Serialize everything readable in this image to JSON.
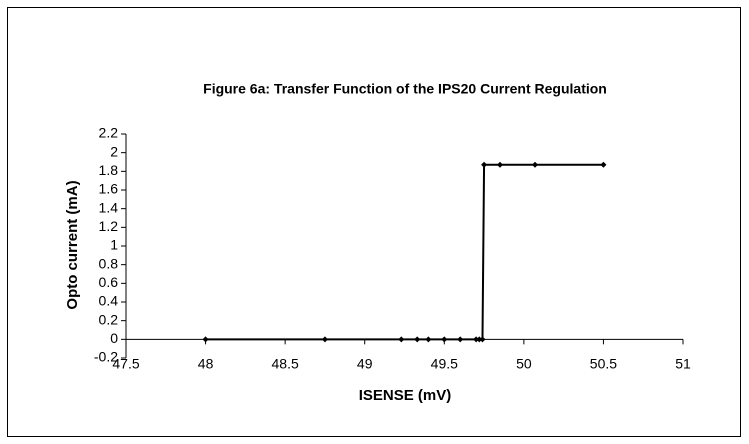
{
  "chart_data": {
    "type": "line",
    "title": "Figure 6a: Transfer Function of the IPS20 Current Regulation",
    "x_label": "ISENSE (mV)",
    "y_label": "Opto current (mA)",
    "x": [
      48,
      48.75,
      49.23,
      49.33,
      49.4,
      49.5,
      49.6,
      49.7,
      49.72,
      49.74,
      49.75,
      49.85,
      50.07,
      50.5
    ],
    "series": [
      {
        "name": "Opto current",
        "color": "#000000",
        "values": [
          0,
          0,
          0,
          0,
          0,
          0,
          0,
          0,
          0,
          0,
          1.87,
          1.87,
          1.87,
          1.87
        ]
      }
    ],
    "xlim": [
      47.5,
      51
    ],
    "xticks": [
      47.5,
      48,
      48.5,
      49,
      49.5,
      50,
      50.5,
      51
    ],
    "ylim": [
      -0.2,
      2.2
    ],
    "yticks": [
      -0.2,
      0,
      0.2,
      0.4,
      0.6,
      0.8,
      1,
      1.2,
      1.4,
      1.6,
      1.8,
      2,
      2.2
    ],
    "grid": false
  }
}
